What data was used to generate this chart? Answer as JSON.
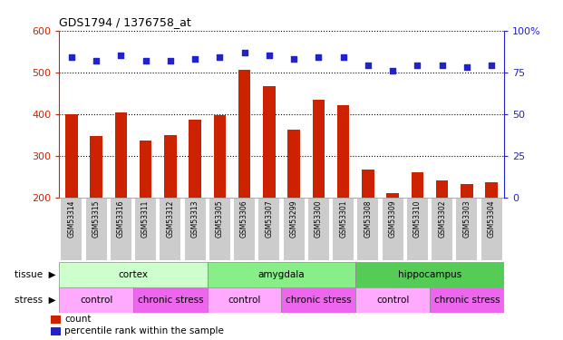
{
  "title": "GDS1794 / 1376758_at",
  "samples": [
    "GSM53314",
    "GSM53315",
    "GSM53316",
    "GSM53311",
    "GSM53312",
    "GSM53313",
    "GSM53305",
    "GSM53306",
    "GSM53307",
    "GSM53299",
    "GSM53300",
    "GSM53301",
    "GSM53308",
    "GSM53309",
    "GSM53310",
    "GSM53302",
    "GSM53303",
    "GSM53304"
  ],
  "counts": [
    400,
    348,
    403,
    337,
    350,
    387,
    397,
    506,
    466,
    362,
    433,
    422,
    267,
    210,
    259,
    241,
    231,
    237
  ],
  "percentiles": [
    84,
    82,
    85,
    82,
    82,
    83,
    84,
    87,
    85,
    83,
    84,
    84,
    79,
    76,
    79,
    79,
    78,
    79
  ],
  "ylim_left": [
    200,
    600
  ],
  "ylim_right": [
    0,
    100
  ],
  "yticks_left": [
    200,
    300,
    400,
    500,
    600
  ],
  "yticks_right": [
    0,
    25,
    50,
    75,
    100
  ],
  "ytick_right_labels": [
    "0",
    "25",
    "50",
    "75",
    "100%"
  ],
  "bar_color": "#cc2200",
  "dot_color": "#2222cc",
  "bg_color": "#ffffff",
  "tissue_groups": [
    {
      "label": "cortex",
      "start": 0,
      "end": 6,
      "color": "#ccffcc"
    },
    {
      "label": "amygdala",
      "start": 6,
      "end": 12,
      "color": "#88ee88"
    },
    {
      "label": "hippocampus",
      "start": 12,
      "end": 18,
      "color": "#55cc55"
    }
  ],
  "stress_groups": [
    {
      "label": "control",
      "start": 0,
      "end": 3,
      "color": "#ffaaff"
    },
    {
      "label": "chronic stress",
      "start": 3,
      "end": 6,
      "color": "#ee66ee"
    },
    {
      "label": "control",
      "start": 6,
      "end": 9,
      "color": "#ffaaff"
    },
    {
      "label": "chronic stress",
      "start": 9,
      "end": 12,
      "color": "#ee66ee"
    },
    {
      "label": "control",
      "start": 12,
      "end": 15,
      "color": "#ffaaff"
    },
    {
      "label": "chronic stress",
      "start": 15,
      "end": 18,
      "color": "#ee66ee"
    }
  ],
  "legend_count_color": "#cc2200",
  "legend_dot_color": "#2222cc",
  "left_axis_color": "#cc2200",
  "right_axis_color": "#2222cc",
  "grid_color": "#000000",
  "tick_label_bg": "#cccccc",
  "tissue_label": "tissue",
  "stress_label": "stress"
}
